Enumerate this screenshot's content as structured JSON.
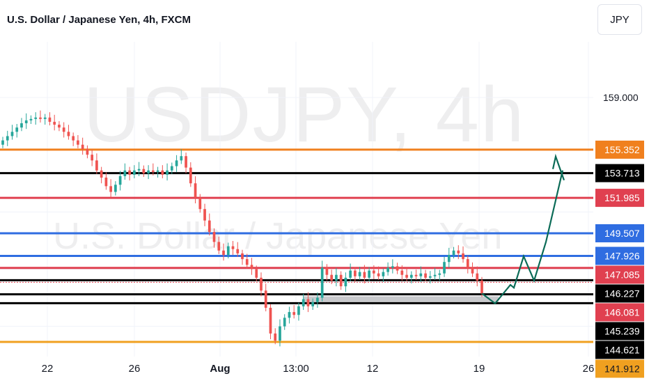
{
  "header": {
    "title": "U.S. Dollar / Japanese Yen, 4h, FXCM",
    "currency_button": "JPY"
  },
  "watermark": {
    "symbol": "USDJPY, 4h",
    "description": "U.S. Dollar / Japanese Yen"
  },
  "chart_data": {
    "type": "candlestick",
    "symbol": "USDJPY",
    "interval": "4h",
    "x_tick_labels": [
      "22",
      "26",
      "Aug",
      "13:00",
      "12",
      "19",
      "26"
    ],
    "y_tick_labels": [
      "159.000"
    ],
    "horizontal_levels": [
      {
        "value": 155.352,
        "color": "#f0801e",
        "label": "155.352"
      },
      {
        "value": 153.713,
        "color": "#000000",
        "label": "153.713"
      },
      {
        "value": 151.985,
        "color": "#e04050",
        "label": "151.985"
      },
      {
        "value": 149.507,
        "color": "#2f6de1",
        "label": "149.507"
      },
      {
        "value": 147.926,
        "color": "#2f6de1",
        "label": "147.926"
      },
      {
        "value": 147.085,
        "color": "#e04050",
        "label": "147.085"
      },
      {
        "value": 146.227,
        "color": "#000000",
        "label": "146.227"
      },
      {
        "value": 146.081,
        "color": "#e04050",
        "label": "146.081"
      },
      {
        "value": 145.239,
        "color": "#000000",
        "label": "145.239"
      },
      {
        "value": 144.621,
        "color": "#000000",
        "label": "144.621"
      },
      {
        "value": 141.912,
        "color": "#f0a020",
        "label": "141.912"
      }
    ],
    "support_zone": [
      144.7,
      145.1
    ],
    "close_series": [
      156.0,
      156.3,
      156.6,
      156.9,
      157.2,
      157.4,
      157.5,
      157.6,
      157.5,
      157.6,
      157.3,
      157.1,
      156.9,
      156.6,
      156.3,
      156.0,
      155.7,
      155.4,
      155.0,
      154.6,
      153.9,
      153.4,
      152.8,
      152.4,
      152.9,
      153.5,
      153.9,
      153.6,
      153.9,
      154.0,
      153.7,
      153.9,
      153.8,
      153.9,
      153.6,
      153.9,
      154.2,
      154.6,
      154.9,
      154.1,
      153.0,
      152.0,
      151.2,
      150.4,
      149.6,
      148.9,
      148.3,
      148.0,
      148.6,
      148.4,
      148.1,
      147.7,
      147.3,
      147.0,
      146.4,
      145.5,
      144.3,
      142.5,
      142.0,
      143.0,
      143.6,
      144.0,
      143.8,
      144.4,
      144.9,
      144.4,
      144.7,
      145.0,
      147.1,
      146.6,
      146.2,
      146.6,
      145.8,
      146.4,
      146.9,
      146.5,
      146.8,
      146.4,
      146.9,
      146.7,
      146.5,
      146.8,
      147.1,
      147.2,
      146.9,
      146.6,
      146.4,
      146.6,
      146.5,
      146.7,
      146.4,
      146.5,
      146.6,
      146.7,
      147.5,
      148.0,
      148.3,
      148.1,
      147.7,
      147.1,
      146.7,
      146.2,
      145.3
    ],
    "projection_path": [
      145.3,
      144.6,
      145.9,
      145.7,
      147.9,
      146.2,
      148.9,
      153.9
    ],
    "y_range": [
      141.0,
      161.0
    ],
    "grid": true
  }
}
